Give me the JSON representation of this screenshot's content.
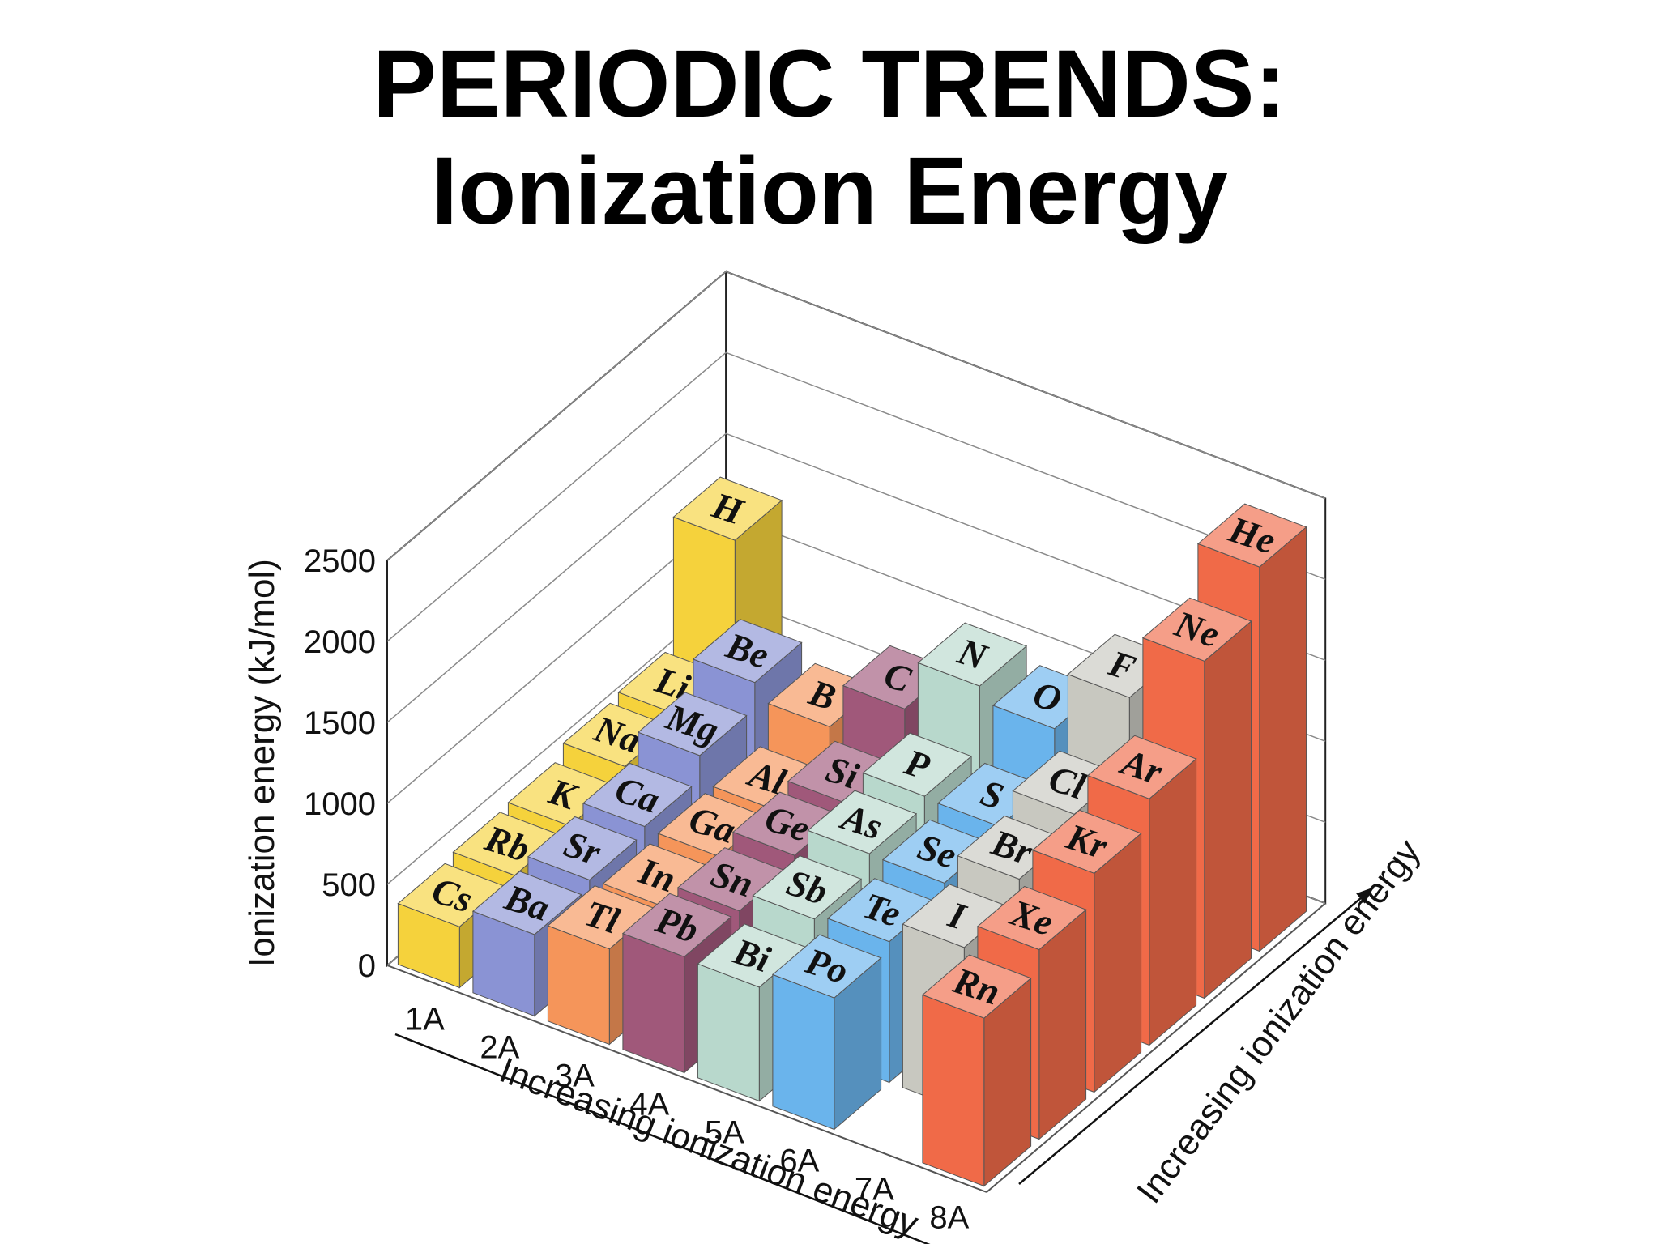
{
  "slide": {
    "title_line_1": "PERIODIC TRENDS:",
    "title_line_2": "Ionization Energy"
  },
  "chart_data": {
    "type": "bar",
    "subtype": "3d-bar",
    "ylabel": "Ionization energy (kJ/mol)",
    "xlabel": "Increasing ionization energy",
    "depth_label": "Increasing ionization energy",
    "ylim": [
      0,
      2500
    ],
    "yticks": [
      "0",
      "500",
      "1000",
      "1500",
      "2000",
      "2500"
    ],
    "groups": [
      "1A",
      "2A",
      "3A",
      "4A",
      "5A",
      "6A",
      "7A",
      "8A"
    ],
    "group_colors": [
      "#f5d23c",
      "#8a93d4",
      "#f5955a",
      "#a0587a",
      "#b8d8cc",
      "#6ab4ec",
      "#c8c8c0",
      "#f06a48"
    ],
    "series": [
      {
        "group": "1A",
        "elements": [
          {
            "symbol": "H",
            "row": 1,
            "value": 1312
          },
          {
            "symbol": "Li",
            "row": 2,
            "value": 520
          },
          {
            "symbol": "Na",
            "row": 3,
            "value": 496
          },
          {
            "symbol": "K",
            "row": 4,
            "value": 419
          },
          {
            "symbol": "Rb",
            "row": 5,
            "value": 403
          },
          {
            "symbol": "Cs",
            "row": 6,
            "value": 376
          }
        ]
      },
      {
        "group": "2A",
        "elements": [
          {
            "symbol": "Be",
            "row": 2,
            "value": 899
          },
          {
            "symbol": "Mg",
            "row": 3,
            "value": 738
          },
          {
            "symbol": "Ca",
            "row": 4,
            "value": 590
          },
          {
            "symbol": "Sr",
            "row": 5,
            "value": 550
          },
          {
            "symbol": "Ba",
            "row": 6,
            "value": 503
          }
        ]
      },
      {
        "group": "3A",
        "elements": [
          {
            "symbol": "B",
            "row": 2,
            "value": 801
          },
          {
            "symbol": "Al",
            "row": 3,
            "value": 578
          },
          {
            "symbol": "Ga",
            "row": 4,
            "value": 579
          },
          {
            "symbol": "In",
            "row": 5,
            "value": 558
          },
          {
            "symbol": "Tl",
            "row": 6,
            "value": 589
          }
        ]
      },
      {
        "group": "4A",
        "elements": [
          {
            "symbol": "C",
            "row": 2,
            "value": 1086
          },
          {
            "symbol": "Si",
            "row": 3,
            "value": 786
          },
          {
            "symbol": "Ge",
            "row": 4,
            "value": 762
          },
          {
            "symbol": "Sn",
            "row": 5,
            "value": 709
          },
          {
            "symbol": "Pb",
            "row": 6,
            "value": 716
          }
        ]
      },
      {
        "group": "5A",
        "elements": [
          {
            "symbol": "N",
            "row": 2,
            "value": 1402
          },
          {
            "symbol": "P",
            "row": 3,
            "value": 1012
          },
          {
            "symbol": "As",
            "row": 4,
            "value": 947
          },
          {
            "symbol": "Sb",
            "row": 5,
            "value": 834
          },
          {
            "symbol": "Bi",
            "row": 6,
            "value": 703
          }
        ]
      },
      {
        "group": "6A",
        "elements": [
          {
            "symbol": "O",
            "row": 2,
            "value": 1314
          },
          {
            "symbol": "S",
            "row": 3,
            "value": 1000
          },
          {
            "symbol": "Se",
            "row": 4,
            "value": 941
          },
          {
            "symbol": "Te",
            "row": 5,
            "value": 869
          },
          {
            "symbol": "Po",
            "row": 6,
            "value": 812
          }
        ]
      },
      {
        "group": "7A",
        "elements": [
          {
            "symbol": "F",
            "row": 2,
            "value": 1681
          },
          {
            "symbol": "Cl",
            "row": 3,
            "value": 1251
          },
          {
            "symbol": "Br",
            "row": 4,
            "value": 1140
          },
          {
            "symbol": "I",
            "row": 5,
            "value": 1008
          }
        ]
      },
      {
        "group": "8A",
        "elements": [
          {
            "symbol": "He",
            "row": 1,
            "value": 2372
          },
          {
            "symbol": "Ne",
            "row": 2,
            "value": 2081
          },
          {
            "symbol": "Ar",
            "row": 3,
            "value": 1521
          },
          {
            "symbol": "Kr",
            "row": 4,
            "value": 1351
          },
          {
            "symbol": "Xe",
            "row": 5,
            "value": 1170
          },
          {
            "symbol": "Rn",
            "row": 6,
            "value": 1037
          }
        ]
      }
    ]
  }
}
